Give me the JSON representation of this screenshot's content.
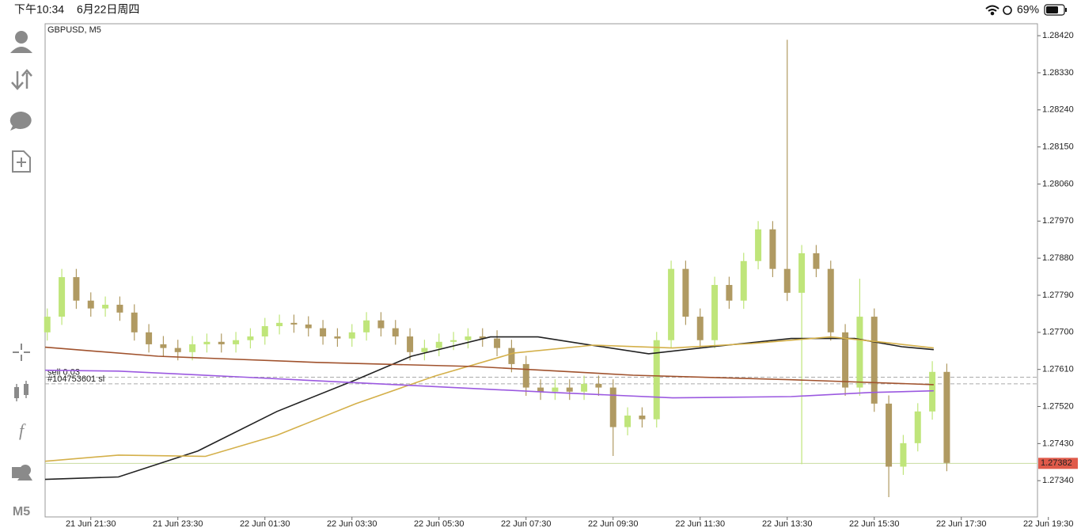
{
  "status_bar": {
    "time": "下午10:34",
    "date": "6月22日周四",
    "battery": "69%"
  },
  "sidebar": {
    "timeframe": "M5"
  },
  "chart_data": {
    "type": "candlestick",
    "title": "GBPUSD, M5",
    "x": [
      -12,
      -8,
      -4,
      0,
      4,
      8,
      12,
      16,
      20,
      24,
      28,
      32,
      36,
      40,
      44,
      48,
      52,
      56,
      60,
      64,
      68,
      72,
      76,
      80,
      84,
      88,
      92,
      96,
      100,
      104,
      108,
      112,
      116,
      120,
      124,
      128,
      132,
      136,
      140,
      144,
      148,
      152,
      156,
      160,
      164,
      168,
      172,
      176,
      180,
      184,
      188,
      192,
      196,
      200,
      204,
      208,
      212,
      216,
      220,
      224,
      228,
      232,
      236
    ],
    "open": [
      1.277,
      1.27738,
      1.27834,
      1.27777,
      1.27758,
      1.27767,
      1.27748,
      1.277,
      1.27671,
      1.27662,
      1.27652,
      1.27671,
      1.27677,
      1.27671,
      1.27681,
      1.2769,
      1.27715,
      1.27723,
      1.27719,
      1.2771,
      1.2769,
      1.27685,
      1.277,
      1.27729,
      1.2771,
      1.2769,
      1.27652,
      1.27662,
      1.27677,
      1.27681,
      1.2769,
      1.27685,
      1.27662,
      1.27623,
      1.27566,
      1.27556,
      1.27566,
      1.27556,
      1.27575,
      1.27566,
      1.2747,
      1.27498,
      1.27489,
      1.27681,
      1.27854,
      1.27738,
      1.27681,
      1.27815,
      1.27777,
      1.27873,
      1.2795,
      1.27854,
      1.27796,
      1.27892,
      1.27854,
      1.277,
      1.27566,
      1.27738,
      1.27527,
      1.27374,
      1.27431,
      1.27508,
      1.27604
    ],
    "high": [
      1.27758,
      1.27854,
      1.27854,
      1.27797,
      1.27787,
      1.27787,
      1.27768,
      1.2772,
      1.27691,
      1.27682,
      1.27691,
      1.27697,
      1.27697,
      1.27701,
      1.2771,
      1.27735,
      1.27743,
      1.27743,
      1.27739,
      1.2773,
      1.2771,
      1.2772,
      1.27749,
      1.27749,
      1.2773,
      1.2771,
      1.27682,
      1.27697,
      1.27701,
      1.2771,
      1.2771,
      1.27705,
      1.27682,
      1.27643,
      1.27586,
      1.27586,
      1.27586,
      1.27595,
      1.27595,
      1.27586,
      1.27518,
      1.27518,
      1.27701,
      1.27874,
      1.27874,
      1.27758,
      1.27835,
      1.27835,
      1.27893,
      1.2797,
      1.2797,
      1.2841,
      1.27912,
      1.27912,
      1.27874,
      1.2772,
      1.2783,
      1.27758,
      1.27547,
      1.27451,
      1.27528,
      1.2763,
      1.27624
    ],
    "low": [
      1.2768,
      1.27718,
      1.27757,
      1.27738,
      1.27738,
      1.27728,
      1.2768,
      1.27651,
      1.27642,
      1.27632,
      1.27632,
      1.27651,
      1.27651,
      1.27651,
      1.27661,
      1.2767,
      1.27695,
      1.27699,
      1.2769,
      1.2767,
      1.27665,
      1.27665,
      1.2768,
      1.2769,
      1.2767,
      1.27632,
      1.27632,
      1.27642,
      1.27657,
      1.27661,
      1.27665,
      1.27642,
      1.27603,
      1.27546,
      1.27536,
      1.27536,
      1.27536,
      1.27536,
      1.27546,
      1.274,
      1.2745,
      1.27469,
      1.27469,
      1.27661,
      1.27718,
      1.27661,
      1.27661,
      1.27757,
      1.27757,
      1.27853,
      1.27834,
      1.27776,
      1.2738,
      1.27834,
      1.2768,
      1.27546,
      1.27546,
      1.27507,
      1.273,
      1.27354,
      1.27411,
      1.27488,
      1.27363
    ],
    "close": [
      1.27738,
      1.27834,
      1.27777,
      1.27758,
      1.27767,
      1.27748,
      1.277,
      1.27671,
      1.27662,
      1.27652,
      1.27671,
      1.27677,
      1.27671,
      1.27681,
      1.2769,
      1.27715,
      1.27723,
      1.27719,
      1.2771,
      1.2769,
      1.27685,
      1.277,
      1.27729,
      1.2771,
      1.2769,
      1.27652,
      1.27662,
      1.27677,
      1.27681,
      1.2769,
      1.27685,
      1.27662,
      1.27623,
      1.27566,
      1.27556,
      1.27566,
      1.27556,
      1.27575,
      1.27566,
      1.2747,
      1.27498,
      1.27489,
      1.27681,
      1.27854,
      1.27738,
      1.27681,
      1.27815,
      1.27777,
      1.27873,
      1.2795,
      1.27854,
      1.27796,
      1.27892,
      1.27854,
      1.277,
      1.27566,
      1.27738,
      1.27527,
      1.27374,
      1.27431,
      1.27508,
      1.27604,
      1.27383
    ],
    "up_color": "#bfe57a",
    "down_color": "#b09a62",
    "lines": [
      {
        "color": "#222222",
        "x": [
          -12.6,
          7.6,
          29.5,
          51.3,
          73.1,
          88.4,
          110.2,
          123.3,
          136.4,
          153.8,
          171.3,
          193.1,
          210.6,
          223.6,
          232.4
        ],
        "values": [
          1.27343,
          1.27349,
          1.27412,
          1.27508,
          1.27585,
          1.27642,
          1.27689,
          1.27689,
          1.27671,
          1.27648,
          1.27665,
          1.27685,
          1.27685,
          1.27665,
          1.27658
        ]
      },
      {
        "color": "#d4b04a",
        "x": [
          -12.6,
          7.6,
          31.6,
          51.3,
          73.1,
          94.9,
          116.7,
          138.6,
          160.4,
          182.2,
          204,
          219.3,
          232.4
        ],
        "values": [
          1.27387,
          1.27402,
          1.27399,
          1.2745,
          1.27527,
          1.27594,
          1.2765,
          1.27669,
          1.27662,
          1.27673,
          1.27689,
          1.27675,
          1.27662
        ]
      },
      {
        "color": "#a0522d",
        "x": [
          -12.6,
          18.5,
          62.2,
          105.8,
          149.5,
          193.1,
          232.4
        ],
        "values": [
          1.27664,
          1.27642,
          1.27627,
          1.27617,
          1.27596,
          1.27585,
          1.27573
        ]
      },
      {
        "color": "#9b59e0",
        "x": [
          -12.6,
          7.6,
          40.4,
          84,
          127.6,
          160.4,
          193.1,
          214.9,
          232.4
        ],
        "values": [
          1.27608,
          1.27606,
          1.27592,
          1.27573,
          1.27554,
          1.27541,
          1.27544,
          1.27554,
          1.27558
        ]
      }
    ],
    "levels": [
      {
        "label": "sell 0.03",
        "value": 1.27591
      },
      {
        "label": "#104753601 sl",
        "value": 1.27575
      }
    ],
    "current_price": {
      "value": 1.27382,
      "label": "1.27382",
      "color": "#e05a4a"
    },
    "xlim": [
      -12.6,
      261
    ],
    "xticks": [
      {
        "value": 0,
        "label": "21 Jun 21:30"
      },
      {
        "value": 24,
        "label": "21 Jun 23:30"
      },
      {
        "value": 48,
        "label": "22 Jun 01:30"
      },
      {
        "value": 72,
        "label": "22 Jun 03:30"
      },
      {
        "value": 96,
        "label": "22 Jun 05:30"
      },
      {
        "value": 120,
        "label": "22 Jun 07:30"
      },
      {
        "value": 144,
        "label": "22 Jun 09:30"
      },
      {
        "value": 168,
        "label": "22 Jun 11:30"
      },
      {
        "value": 192,
        "label": "22 Jun 13:30"
      },
      {
        "value": 216,
        "label": "22 Jun 15:30"
      },
      {
        "value": 240,
        "label": "22 Jun 17:30"
      },
      {
        "value": 264,
        "label": "22 Jun 19:30"
      }
    ],
    "ylim": [
      1.27252,
      1.28449
    ],
    "yticks": [
      {
        "value": 1.2842,
        "label": "1.28420"
      },
      {
        "value": 1.2833,
        "label": "1.28330"
      },
      {
        "value": 1.2824,
        "label": "1.28240"
      },
      {
        "value": 1.2815,
        "label": "1.28150"
      },
      {
        "value": 1.2806,
        "label": "1.28060"
      },
      {
        "value": 1.2797,
        "label": "1.27970"
      },
      {
        "value": 1.2788,
        "label": "1.27880"
      },
      {
        "value": 1.2779,
        "label": "1.27790"
      },
      {
        "value": 1.277,
        "label": "1.27700"
      },
      {
        "value": 1.2761,
        "label": "1.27610"
      },
      {
        "value": 1.2752,
        "label": "1.27520"
      },
      {
        "value": 1.2743,
        "label": "1.27430"
      },
      {
        "value": 1.2734,
        "label": "1.27340"
      }
    ]
  }
}
